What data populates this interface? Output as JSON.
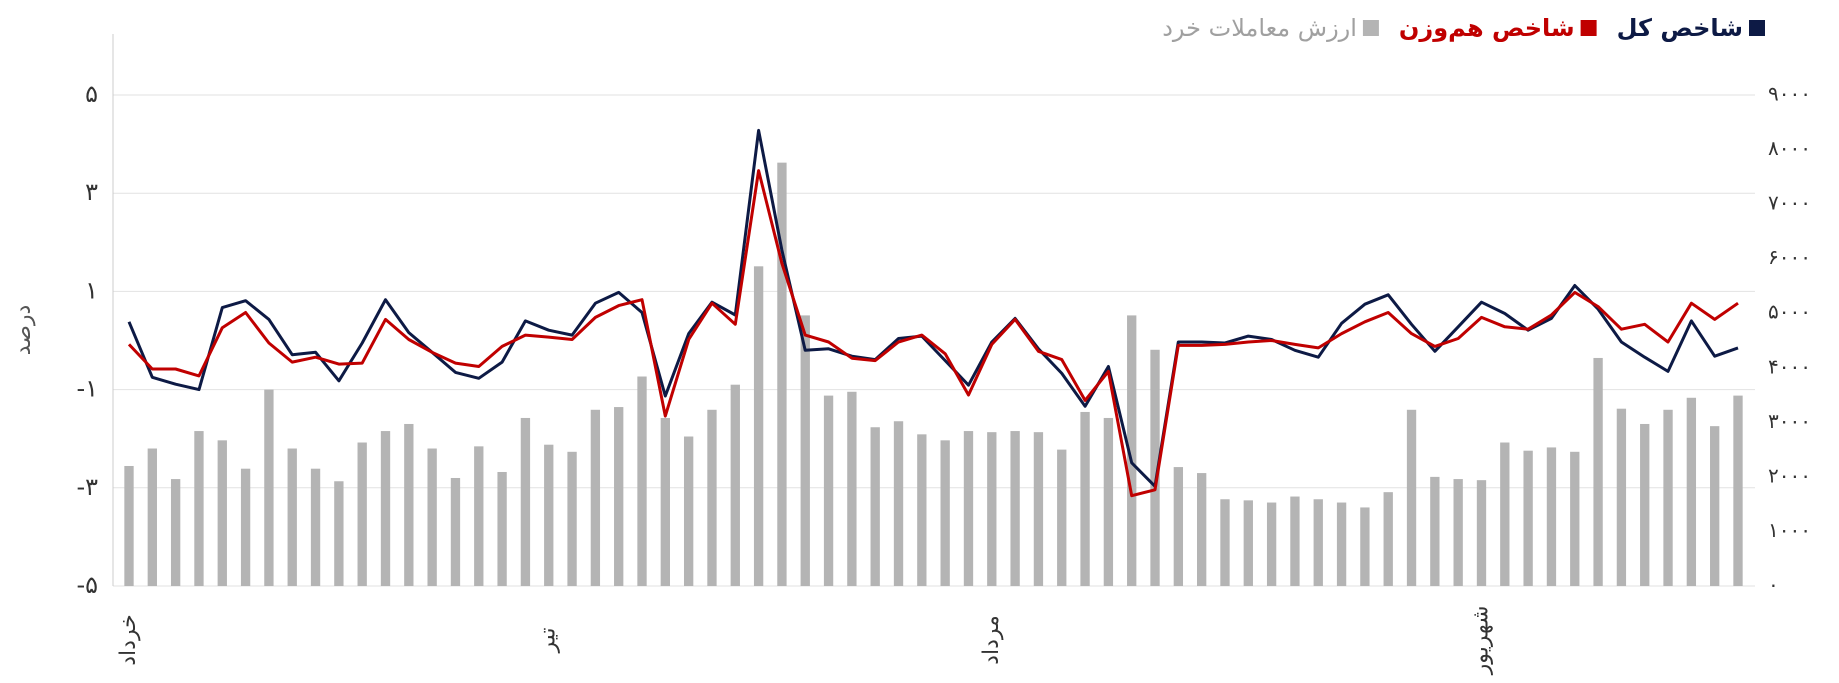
{
  "chart_data": {
    "type": "bar",
    "ylabel": "درصد",
    "categories": [
      "خرداد",
      null,
      null,
      null,
      null,
      null,
      null,
      null,
      null,
      null,
      null,
      null,
      null,
      null,
      null,
      null,
      null,
      null,
      "تیر",
      null,
      null,
      null,
      null,
      null,
      null,
      null,
      null,
      null,
      null,
      null,
      null,
      null,
      null,
      null,
      null,
      null,
      null,
      "مرداد",
      null,
      null,
      null,
      null,
      null,
      null,
      null,
      null,
      null,
      null,
      null,
      null,
      null,
      null,
      null,
      null,
      null,
      null,
      null,
      null,
      "شهریور",
      null,
      null,
      null,
      null,
      null,
      null,
      null,
      null,
      null,
      null,
      null
    ],
    "ylim": [
      -5,
      5
    ],
    "yticks": [
      {
        "value": -5,
        "label": "-۵"
      },
      {
        "value": -3,
        "label": "-۳"
      },
      {
        "value": -1,
        "label": "-۱"
      },
      {
        "value": 1,
        "label": "۱"
      },
      {
        "value": 3,
        "label": "۳"
      },
      {
        "value": 5,
        "label": "۵"
      }
    ],
    "y2lim": [
      0,
      9000
    ],
    "y2ticks": [
      {
        "value": 0,
        "label": "۰"
      },
      {
        "value": 1000,
        "label": "۱۰۰۰"
      },
      {
        "value": 2000,
        "label": "۲۰۰۰"
      },
      {
        "value": 3000,
        "label": "۳۰۰۰"
      },
      {
        "value": 4000,
        "label": "۴۰۰۰"
      },
      {
        "value": 5000,
        "label": "۵۰۰۰"
      },
      {
        "value": 6000,
        "label": "۶۰۰۰"
      },
      {
        "value": 7000,
        "label": "۷۰۰۰"
      },
      {
        "value": 8000,
        "label": "۸۰۰۰"
      },
      {
        "value": 9000,
        "label": "۹۰۰۰"
      }
    ],
    "grid": true,
    "legend": "top-right",
    "series": [
      {
        "name": "شاخص کل",
        "color": "#0d1a45",
        "type": "line",
        "values": [
          0.38,
          -0.75,
          -0.89,
          -1.0,
          0.67,
          0.81,
          0.43,
          -0.29,
          -0.24,
          -0.82,
          -0.05,
          0.83,
          0.16,
          -0.24,
          -0.65,
          -0.77,
          -0.44,
          0.4,
          0.21,
          0.11,
          0.76,
          0.98,
          0.57,
          -1.13,
          0.14,
          0.78,
          0.52,
          4.28,
          1.84,
          -0.2,
          -0.17,
          -0.32,
          -0.39,
          0.04,
          0.09,
          -0.41,
          -0.91,
          -0.03,
          0.45,
          -0.17,
          -0.67,
          -1.34,
          -0.53,
          -2.49,
          -2.97,
          -0.03,
          -0.03,
          -0.05,
          0.09,
          0.02,
          -0.2,
          -0.34,
          0.35,
          0.74,
          0.93,
          0.33,
          -0.22,
          0.28,
          0.78,
          0.55,
          0.21,
          0.45,
          1.12,
          0.64,
          -0.03,
          -0.34,
          -0.63,
          0.4,
          -0.32,
          -0.15
        ]
      },
      {
        "name": "شاخص هم‌وزن",
        "color": "#c00000",
        "type": "line",
        "values": [
          -0.08,
          -0.58,
          -0.58,
          -0.72,
          0.26,
          0.57,
          -0.05,
          -0.44,
          -0.34,
          -0.48,
          -0.46,
          0.43,
          0.02,
          -0.24,
          -0.46,
          -0.53,
          -0.12,
          0.11,
          0.07,
          0.02,
          0.47,
          0.71,
          0.83,
          -1.54,
          0.02,
          0.76,
          0.33,
          3.46,
          1.57,
          0.11,
          -0.03,
          -0.36,
          -0.41,
          -0.03,
          0.11,
          -0.27,
          -1.11,
          -0.08,
          0.43,
          -0.22,
          -0.39,
          -1.22,
          -0.63,
          -3.16,
          -3.04,
          -0.1,
          -0.1,
          -0.08,
          -0.03,
          0.0,
          -0.08,
          -0.15,
          0.14,
          0.38,
          0.57,
          0.14,
          -0.12,
          0.04,
          0.47,
          0.28,
          0.23,
          0.52,
          0.98,
          0.69,
          0.23,
          0.33,
          -0.03,
          0.76,
          0.43,
          0.76
        ]
      },
      {
        "name": "ارزش معاملات خرد",
        "color": "#b4b4b4",
        "type": "bar",
        "axis": "y2",
        "values": [
          2200,
          2520,
          1960,
          2840,
          2670,
          2150,
          3600,
          2520,
          2150,
          1920,
          2630,
          2840,
          2970,
          2520,
          1980,
          2560,
          2090,
          3080,
          2590,
          2460,
          3230,
          3280,
          3840,
          3080,
          2740,
          3230,
          3690,
          5860,
          7760,
          4960,
          3490,
          3560,
          2910,
          3020,
          2780,
          2670,
          2840,
          2820,
          2840,
          2820,
          2500,
          3190,
          3080,
          4960,
          4330,
          2180,
          2070,
          1590,
          1570,
          1530,
          1640,
          1590,
          1530,
          1440,
          1720,
          3230,
          2000,
          1960,
          1940,
          2630,
          2480,
          2540,
          2460,
          4180,
          3250,
          2970,
          3230,
          3450,
          2930,
          3490
        ]
      }
    ]
  }
}
